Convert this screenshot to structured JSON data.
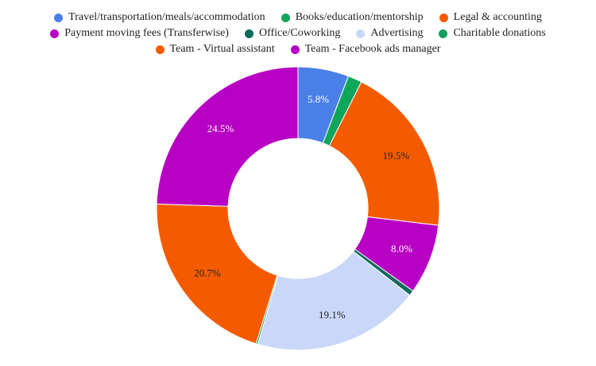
{
  "chart_data": {
    "type": "pie",
    "donut": true,
    "title": "",
    "legend_position": "top",
    "slices": [
      {
        "name": "Travel/transportation/meals/accommodation",
        "value": 5.8,
        "label": "5.8%",
        "color": "#4a7fe8",
        "label_color": "#ffffff"
      },
      {
        "name": "Books/education/mentorship",
        "value": 1.6,
        "label": "",
        "color": "#10a65a",
        "label_color": "#ffffff"
      },
      {
        "name": "Legal & accounting",
        "value": 19.5,
        "label": "19.5%",
        "color": "#f45b00",
        "label_color": "#222222"
      },
      {
        "name": "Payment moving fees (Transferwise)",
        "value": 8.0,
        "label": "8.0%",
        "color": "#b800c4",
        "label_color": "#ffffff"
      },
      {
        "name": "Office/Coworking",
        "value": 0.6,
        "label": "",
        "color": "#0b6b5c",
        "label_color": "#ffffff"
      },
      {
        "name": "Advertising",
        "value": 19.1,
        "label": "19.1%",
        "color": "#c9d8f8",
        "label_color": "#222222"
      },
      {
        "name": "Charitable donations",
        "value": 0.2,
        "label": "",
        "color": "#13a060",
        "label_color": "#ffffff"
      },
      {
        "name": "Team - Virtual assistant",
        "value": 20.7,
        "label": "20.7%",
        "color": "#f45b00",
        "label_color": "#222222"
      },
      {
        "name": "Team - Facebook ads manager",
        "value": 24.5,
        "label": "24.5%",
        "color": "#b800c4",
        "label_color": "#ffffff"
      }
    ]
  }
}
